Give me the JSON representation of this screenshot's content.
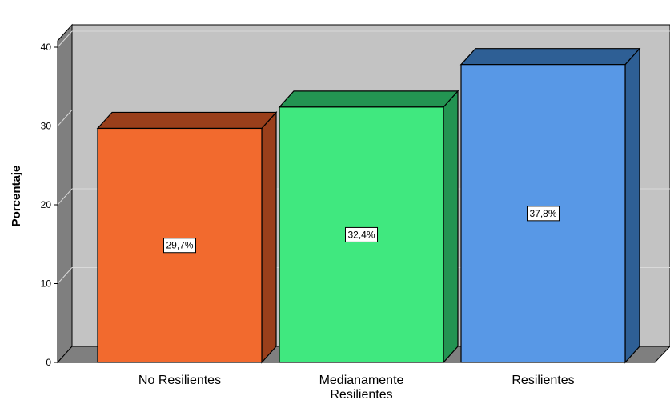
{
  "chart_data": {
    "type": "bar",
    "categories": [
      "No Resilientes",
      "Medianamente Resilientes",
      "Resilientes"
    ],
    "category_lines": [
      [
        "No Resilientes"
      ],
      [
        "Medianamente",
        "Resilientes"
      ],
      [
        "Resilientes"
      ]
    ],
    "values": [
      29.7,
      32.4,
      37.8
    ],
    "data_labels": [
      "29,7%",
      "32,4%",
      "37,8%"
    ],
    "ylabel": "Porcentaje",
    "xlabel": "",
    "ylim": [
      0,
      40
    ],
    "yticks": [
      0,
      10,
      20,
      30,
      40
    ],
    "grid": true,
    "style": "3d",
    "colors": {
      "bars": [
        "#f26a2e",
        "#40e87f",
        "#5898e6"
      ],
      "bar_tops": [
        "#9a3f1b",
        "#239452",
        "#2e5f95"
      ],
      "bar_sides": [
        "#9a3f1b",
        "#239452",
        "#2e5f95"
      ],
      "back_wall": "#c3c3c3",
      "side_wall": "#7f7f7f",
      "floor": "#7f7f7f",
      "gridline": "#d9d9d9"
    }
  }
}
